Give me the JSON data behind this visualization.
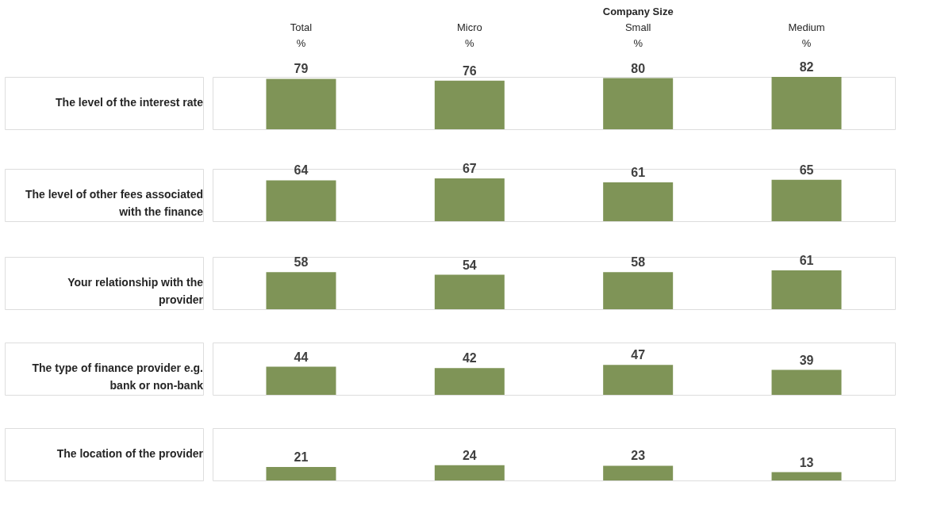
{
  "chart_data": [
    {
      "type": "bar",
      "title": "The level of the interest rate",
      "categories": [
        "Total",
        "Micro",
        "Small",
        "Medium"
      ],
      "values": [
        79,
        76,
        80,
        82
      ],
      "color": "#7f9457",
      "data_labels": true,
      "grid": false,
      "legend": false,
      "tick_labels": "x",
      "annotations": [
        "Company Size",
        "%"
      ]
    },
    {
      "type": "bar",
      "title": "The level of other fees associated with the finance",
      "categories": [
        null,
        null,
        null,
        null
      ],
      "values": [
        64,
        67,
        61,
        65
      ],
      "color": "#7f9457",
      "data_labels": true,
      "grid": false,
      "legend": false,
      "tick_labels": false
    },
    {
      "type": "bar",
      "title": "Your relationship with the provider",
      "categories": [
        null,
        null,
        null,
        null
      ],
      "values": [
        58,
        54,
        58,
        61
      ],
      "color": "#7f9457",
      "data_labels": true,
      "grid": false,
      "legend": false,
      "tick_labels": false
    },
    {
      "type": "bar",
      "title": "The type of finance provider e.g. bank or non-bank",
      "categories": [
        null,
        null,
        null,
        null
      ],
      "values": [
        44,
        42,
        47,
        39
      ],
      "color": "#7f9457",
      "data_labels": true,
      "grid": false,
      "legend": false,
      "tick_labels": false
    },
    {
      "type": "bar",
      "title": "The location of the provider",
      "categories": [
        null,
        null,
        null,
        null
      ],
      "values": [
        21,
        24,
        23,
        13
      ],
      "color": "#7f9457",
      "data_labels": true,
      "grid": false,
      "legend": false,
      "tick_labels": false
    }
  ]
}
